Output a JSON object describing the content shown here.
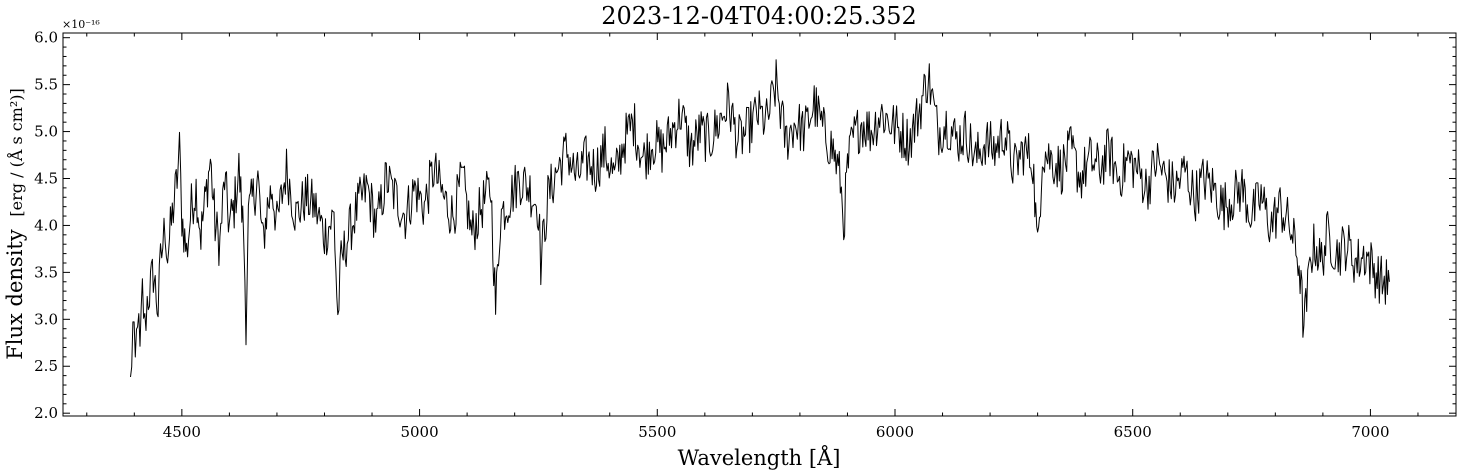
{
  "chart_data": {
    "type": "line",
    "title": "2023-12-04T04:00:25.352",
    "xlabel": "Wavelength [Å]",
    "ylabel": "Flux density",
    "ylabel_unit": "[erg / (Å s cm²)]",
    "y_multiplier_label": "×10⁻¹⁶",
    "xlim": [
      4250,
      7180
    ],
    "ylim": [
      1.97,
      6.05
    ],
    "xticks": [
      4500,
      5000,
      5500,
      6000,
      6500,
      7000
    ],
    "yticks": [
      2.0,
      2.5,
      3.0,
      3.5,
      4.0,
      4.5,
      5.0,
      5.5,
      6.0
    ],
    "xtick_labels": [
      "4500",
      "5000",
      "5500",
      "6000",
      "6500",
      "7000"
    ],
    "ytick_labels": [
      "2.0",
      "2.5",
      "3.0",
      "3.5",
      "4.0",
      "4.5",
      "5.0",
      "5.5",
      "6.0"
    ],
    "grid": false,
    "line_color": "#000000",
    "series": [
      {
        "x": [
          4392,
          4397,
          4402,
          4407,
          4412,
          4417,
          4422,
          4427,
          4432,
          4440,
          4450,
          4455,
          4460,
          4465,
          4470,
          4480,
          4490,
          4495,
          4500,
          4510,
          4520,
          4530,
          4540,
          4550,
          4560,
          4570,
          4580,
          4590,
          4600,
          4610,
          4620,
          4630,
          4635,
          4640,
          4650,
          4660,
          4670,
          4680,
          4690,
          4700,
          4720,
          4740,
          4760,
          4780,
          4800,
          4820,
          4828,
          4835,
          4850,
          4870,
          4890,
          4910,
          4930,
          4950,
          4970,
          4990,
          5010,
          5030,
          5050,
          5070,
          5090,
          5110,
          5130,
          5150,
          5160,
          5170,
          5190,
          5210,
          5230,
          5250,
          5255,
          5270,
          5290,
          5310,
          5330,
          5350,
          5370,
          5390,
          5410,
          5430,
          5450,
          5470,
          5490,
          5510,
          5530,
          5550,
          5570,
          5590,
          5610,
          5630,
          5650,
          5670,
          5690,
          5710,
          5730,
          5750,
          5770,
          5790,
          5810,
          5830,
          5850,
          5870,
          5885,
          5892,
          5900,
          5910,
          5930,
          5950,
          5970,
          5990,
          6010,
          6030,
          6050,
          6070,
          6090,
          6110,
          6130,
          6150,
          6170,
          6190,
          6210,
          6230,
          6250,
          6270,
          6290,
          6300,
          6310,
          6330,
          6350,
          6370,
          6390,
          6410,
          6430,
          6450,
          6470,
          6490,
          6510,
          6530,
          6550,
          6570,
          6590,
          6610,
          6630,
          6650,
          6670,
          6690,
          6710,
          6730,
          6750,
          6770,
          6790,
          6810,
          6830,
          6850,
          6860,
          6868,
          6875,
          6885,
          6895,
          6910,
          6930,
          6950,
          6970,
          6990,
          7010,
          7025,
          7040
        ],
        "y": [
          2.3,
          2.9,
          2.5,
          3.1,
          2.6,
          3.3,
          2.9,
          3.2,
          3.3,
          3.5,
          3.1,
          3.6,
          3.8,
          4.0,
          3.7,
          4.1,
          4.5,
          4.8,
          4.1,
          3.7,
          4.2,
          4.4,
          3.9,
          4.3,
          4.7,
          4.0,
          3.8,
          4.5,
          4.0,
          4.2,
          4.6,
          3.9,
          3.0,
          4.1,
          4.3,
          4.5,
          3.8,
          4.2,
          4.4,
          4.0,
          4.6,
          4.1,
          4.3,
          4.2,
          3.9,
          4.1,
          3.0,
          3.6,
          3.9,
          4.2,
          4.4,
          4.0,
          4.5,
          4.3,
          4.1,
          4.4,
          4.2,
          4.6,
          4.3,
          4.1,
          4.5,
          3.9,
          4.2,
          4.4,
          3.1,
          4.1,
          4.3,
          4.5,
          4.4,
          4.2,
          3.6,
          4.3,
          4.6,
          4.8,
          4.5,
          4.7,
          4.6,
          4.8,
          4.5,
          4.9,
          5.1,
          4.7,
          4.9,
          4.8,
          5.0,
          5.2,
          4.8,
          5.0,
          4.9,
          5.1,
          5.3,
          4.9,
          5.0,
          5.2,
          5.1,
          5.5,
          4.9,
          5.1,
          5.0,
          5.3,
          5.0,
          4.8,
          4.5,
          4.0,
          4.6,
          4.9,
          5.1,
          5.0,
          5.2,
          5.1,
          5.0,
          4.9,
          5.2,
          5.6,
          5.0,
          5.1,
          4.9,
          5.0,
          4.7,
          4.9,
          4.8,
          5.0,
          4.6,
          4.8,
          4.7,
          3.7,
          4.8,
          4.7,
          4.6,
          4.8,
          4.5,
          4.7,
          4.6,
          4.8,
          4.5,
          4.7,
          4.6,
          4.4,
          4.7,
          4.5,
          4.4,
          4.6,
          4.3,
          4.5,
          4.4,
          4.2,
          4.3,
          4.4,
          4.1,
          4.3,
          4.0,
          4.2,
          4.0,
          3.6,
          2.9,
          3.3,
          3.7,
          3.8,
          3.6,
          3.9,
          3.7,
          3.8,
          3.6,
          3.7,
          3.5,
          3.4,
          3.4
        ],
        "style": "noisy-spectrum"
      }
    ]
  }
}
